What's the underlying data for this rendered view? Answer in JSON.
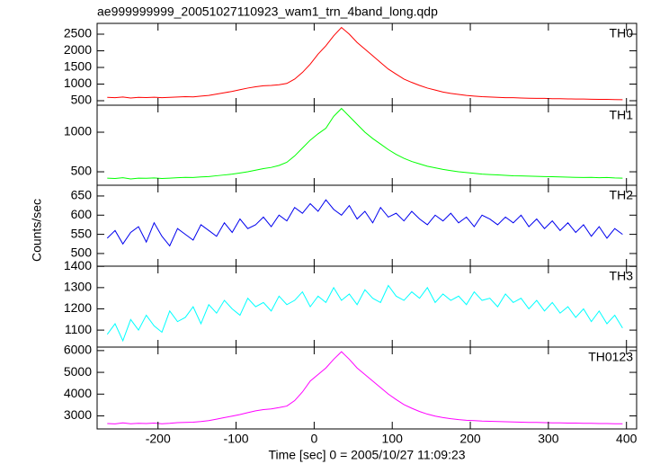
{
  "chart_data": {
    "type": "line",
    "title": "ae999999999_20051027110923_wam1_trn_4band_long.qdp",
    "xlabel": "Time [sec] 0 = 2005/10/27 11:09:23",
    "ylabel": "Counts/sec",
    "xlim": [
      -278,
      413
    ],
    "xticks": [
      -200,
      -100,
      0,
      100,
      200,
      300,
      400
    ],
    "x": [
      -265,
      -255,
      -245,
      -235,
      -225,
      -215,
      -205,
      -195,
      -185,
      -175,
      -165,
      -155,
      -145,
      -135,
      -125,
      -115,
      -105,
      -95,
      -85,
      -75,
      -65,
      -55,
      -45,
      -35,
      -25,
      -15,
      -5,
      5,
      15,
      25,
      35,
      45,
      55,
      65,
      75,
      85,
      95,
      105,
      115,
      125,
      135,
      145,
      155,
      165,
      175,
      185,
      195,
      205,
      215,
      225,
      235,
      245,
      255,
      265,
      275,
      285,
      295,
      305,
      315,
      325,
      335,
      345,
      355,
      365,
      375,
      385,
      395
    ],
    "series": [
      {
        "name": "TH0",
        "color": "#ff0000",
        "ylim": [
          365,
          2824
        ],
        "yticks": [
          500,
          1000,
          1500,
          2000,
          2500
        ],
        "values": [
          600,
          590,
          610,
          580,
          600,
          595,
          605,
          590,
          600,
          610,
          620,
          615,
          640,
          660,
          700,
          740,
          780,
          830,
          880,
          920,
          950,
          960,
          980,
          1020,
          1150,
          1350,
          1600,
          1900,
          2150,
          2450,
          2700,
          2500,
          2250,
          2050,
          1850,
          1650,
          1450,
          1300,
          1150,
          1050,
          960,
          880,
          820,
          760,
          720,
          690,
          660,
          640,
          620,
          610,
          600,
          590,
          590,
          580,
          575,
          570,
          570,
          560,
          560,
          555,
          550,
          550,
          545,
          540,
          540,
          535,
          530
        ]
      },
      {
        "name": "TH1",
        "color": "#00ff00",
        "ylim": [
          330,
          1341
        ],
        "yticks": [
          500,
          1000
        ],
        "values": [
          420,
          415,
          425,
          410,
          420,
          418,
          422,
          415,
          420,
          425,
          430,
          428,
          435,
          440,
          450,
          460,
          470,
          485,
          500,
          520,
          540,
          555,
          580,
          620,
          700,
          800,
          900,
          980,
          1050,
          1200,
          1300,
          1200,
          1100,
          1000,
          920,
          850,
          780,
          720,
          670,
          630,
          600,
          570,
          550,
          530,
          515,
          500,
          490,
          480,
          470,
          465,
          460,
          455,
          450,
          448,
          445,
          442,
          440,
          438,
          435,
          432,
          430,
          428,
          430,
          425,
          428,
          422,
          420
        ]
      },
      {
        "name": "TH2",
        "color": "#0000ee",
        "ylim": [
          467,
          678
        ],
        "yticks": [
          500,
          550,
          600,
          650
        ],
        "values": [
          540,
          560,
          525,
          555,
          570,
          530,
          580,
          545,
          520,
          565,
          550,
          535,
          575,
          560,
          545,
          580,
          555,
          590,
          565,
          575,
          595,
          570,
          600,
          585,
          620,
          605,
          630,
          610,
          640,
          615,
          600,
          625,
          590,
          610,
          580,
          620,
          595,
          605,
          585,
          610,
          590,
          575,
          600,
          585,
          605,
          580,
          595,
          570,
          600,
          590,
          575,
          595,
          580,
          600,
          570,
          590,
          565,
          585,
          560,
          580,
          555,
          575,
          545,
          570,
          540,
          565,
          550
        ]
      },
      {
        "name": "TH3",
        "color": "#00ffff",
        "ylim": [
          1020,
          1401
        ],
        "yticks": [
          1100,
          1200,
          1300,
          1400
        ],
        "values": [
          1080,
          1130,
          1050,
          1150,
          1100,
          1170,
          1120,
          1090,
          1190,
          1140,
          1160,
          1210,
          1130,
          1220,
          1180,
          1240,
          1200,
          1170,
          1250,
          1210,
          1230,
          1190,
          1260,
          1220,
          1240,
          1280,
          1210,
          1260,
          1230,
          1300,
          1240,
          1270,
          1220,
          1290,
          1250,
          1230,
          1310,
          1260,
          1240,
          1280,
          1250,
          1300,
          1230,
          1270,
          1240,
          1260,
          1220,
          1280,
          1240,
          1250,
          1210,
          1270,
          1230,
          1250,
          1200,
          1240,
          1190,
          1230,
          1180,
          1210,
          1160,
          1200,
          1140,
          1190,
          1130,
          1170,
          1110
        ]
      },
      {
        "name": "TH0123",
        "color": "#ff00ff",
        "ylim": [
          2400,
          6160
        ],
        "yticks": [
          3000,
          4000,
          5000,
          6000
        ],
        "values": [
          2650,
          2630,
          2680,
          2640,
          2660,
          2650,
          2670,
          2640,
          2660,
          2690,
          2700,
          2710,
          2740,
          2780,
          2850,
          2920,
          2990,
          3060,
          3150,
          3230,
          3290,
          3320,
          3380,
          3450,
          3700,
          4100,
          4600,
          4900,
          5200,
          5600,
          5950,
          5600,
          5200,
          4900,
          4600,
          4300,
          4000,
          3750,
          3520,
          3350,
          3200,
          3080,
          2990,
          2920,
          2870,
          2830,
          2800,
          2780,
          2760,
          2750,
          2740,
          2730,
          2720,
          2710,
          2700,
          2700,
          2690,
          2680,
          2680,
          2670,
          2670,
          2660,
          2660,
          2650,
          2650,
          2640,
          2640
        ]
      }
    ]
  }
}
